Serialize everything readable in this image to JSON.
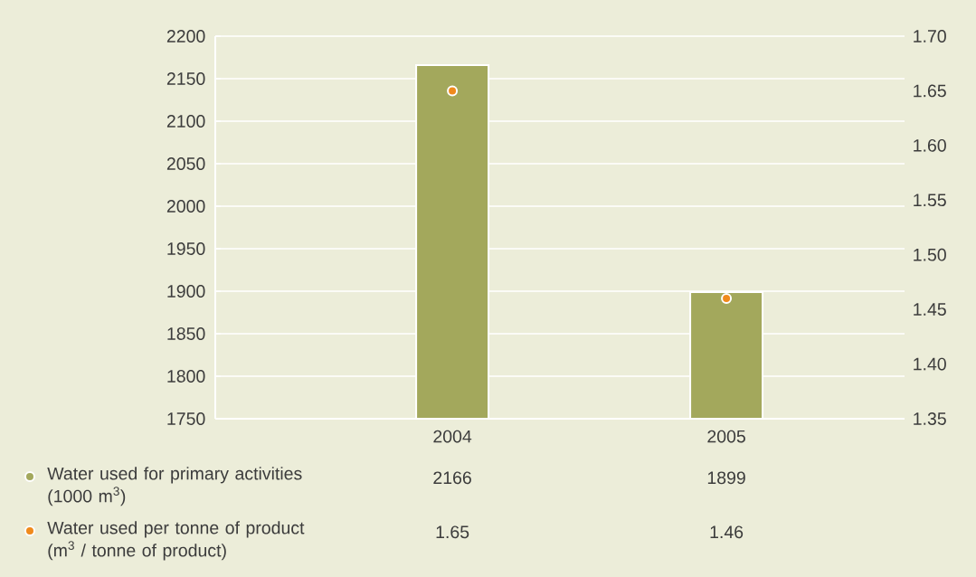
{
  "chart_data": {
    "type": "bar",
    "categories": [
      "2004",
      "2005"
    ],
    "series": [
      {
        "name": "Water used for primary activities (1000 m$^{3}$)",
        "color": "#a3a85c",
        "values": [
          2166,
          1899
        ]
      },
      {
        "name": "Water used per tonne of product (m$^{3}$ / tonne of product)",
        "type": "scatter",
        "axis": "y2",
        "marker": "circle",
        "color": "#f08a1c",
        "values": [
          1.65,
          1.46
        ]
      }
    ],
    "ylim": [
      1750,
      2200
    ],
    "yticks": [
      1750,
      1800,
      1850,
      1900,
      1950,
      2000,
      2050,
      2100,
      2150,
      2200
    ],
    "y2lim": [
      1.35,
      1.7
    ],
    "y2ticks": [
      {
        "value": 1.35,
        "label": "1.35"
      },
      {
        "value": 1.4,
        "label": "1.40"
      },
      {
        "value": 1.45,
        "label": "1.45"
      },
      {
        "value": 1.5,
        "label": "1.50"
      },
      {
        "value": 1.55,
        "label": "1.55"
      },
      {
        "value": 1.6,
        "label": "1.60"
      },
      {
        "value": 1.65,
        "label": "1.65"
      },
      {
        "value": 1.7,
        "label": "1.70"
      }
    ],
    "grid": "y",
    "data_labels": true,
    "legend": "bottom left"
  }
}
